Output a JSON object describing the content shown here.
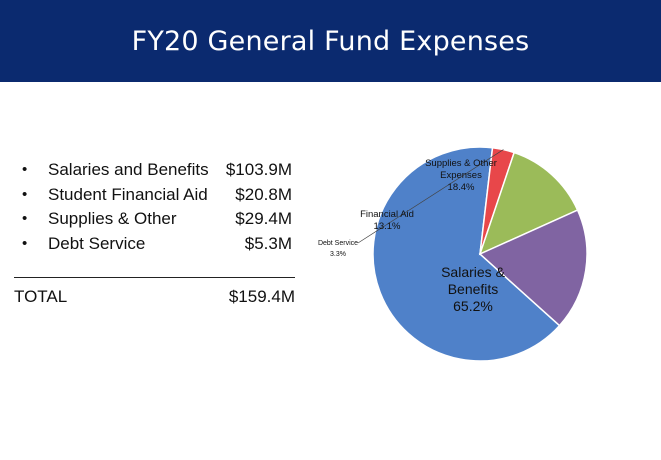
{
  "title": "FY20 General Fund Expenses",
  "summary": {
    "items": [
      {
        "bullet": "•",
        "label": "Salaries and Benefits",
        "amount": "$103.9M"
      },
      {
        "bullet": "•",
        "label": "Student Financial Aid",
        "amount": "$20.8M"
      },
      {
        "bullet": "•",
        "label": "Supplies & Other",
        "amount": "$29.4M"
      },
      {
        "bullet": "•",
        "label": "Debt Service",
        "amount": "$5.3M"
      }
    ],
    "total_label": "TOTAL",
    "total_amount": "$159.4M"
  },
  "colors": {
    "title_bar": "#0b2a6f",
    "salaries": "#4f81c9",
    "financial_aid": "#9bbb59",
    "supplies": "#8064a2",
    "debt": "#e8474a"
  },
  "chart_data": {
    "type": "pie",
    "slices": [
      {
        "label_lines": [
          "Salaries &",
          "Benefits"
        ],
        "percent_label": "65.2%",
        "value": 65.2,
        "color": "#4f81c9"
      },
      {
        "label_lines": [
          "Debt Service"
        ],
        "percent_label": "3.3%",
        "value": 3.3,
        "color": "#e8474a"
      },
      {
        "label_lines": [
          "Financial Aid"
        ],
        "percent_label": "13.1%",
        "value": 13.1,
        "color": "#9bbb59"
      },
      {
        "label_lines": [
          "Supplies & Other",
          "Expenses"
        ],
        "percent_label": "18.4%",
        "value": 18.4,
        "color": "#8064a2"
      }
    ]
  }
}
